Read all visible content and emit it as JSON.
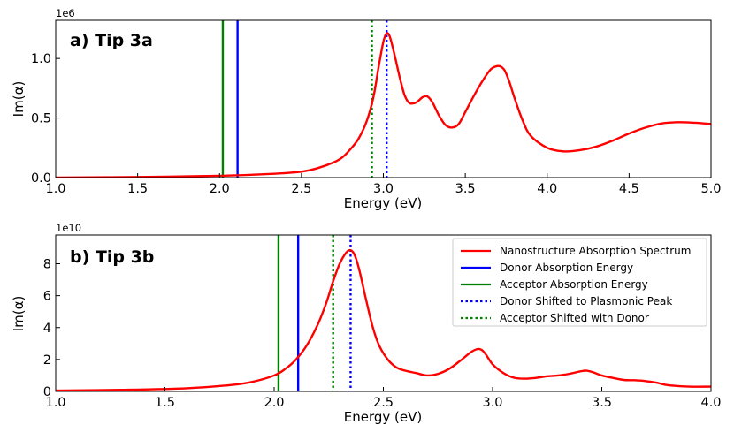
{
  "colors": {
    "spectrum": "#ff0000",
    "donor": "#0000ff",
    "acceptor": "#008000",
    "donor_shifted": "#0000ff",
    "acceptor_shifted": "#008000"
  },
  "chart_data": [
    {
      "type": "line",
      "panel_label": "a) Tip 3a",
      "xlabel": "Energy (eV)",
      "ylabel": "Im(α)",
      "offset_text": "1e6",
      "xlim": [
        1.0,
        5.0
      ],
      "ylim": [
        0,
        1.32
      ],
      "xticks": [
        1.0,
        1.5,
        2.0,
        2.5,
        3.0,
        3.5,
        4.0,
        4.5,
        5.0
      ],
      "xtick_labels": [
        "1.0",
        "1.5",
        "2.0",
        "2.5",
        "3.0",
        "3.5",
        "4.0",
        "4.5",
        "5.0"
      ],
      "yticks": [
        0.0,
        0.5,
        1.0
      ],
      "ytick_labels": [
        "0.0",
        "0.5",
        "1.0"
      ],
      "grid": false,
      "series": [
        {
          "name": "Nanostructure Absorption Spectrum",
          "x": [
            1.0,
            1.5,
            2.0,
            2.3,
            2.5,
            2.6,
            2.7,
            2.75,
            2.8,
            2.85,
            2.9,
            2.94,
            2.97,
            3.0,
            3.02,
            3.04,
            3.07,
            3.1,
            3.13,
            3.16,
            3.2,
            3.24,
            3.27,
            3.3,
            3.34,
            3.38,
            3.42,
            3.46,
            3.5,
            3.55,
            3.6,
            3.65,
            3.68,
            3.71,
            3.74,
            3.77,
            3.8,
            3.85,
            3.9,
            4.0,
            4.1,
            4.2,
            4.3,
            4.4,
            4.5,
            4.6,
            4.7,
            4.8,
            4.9,
            5.0
          ],
          "y": [
            0.0,
            0.005,
            0.015,
            0.03,
            0.05,
            0.08,
            0.13,
            0.17,
            0.24,
            0.33,
            0.48,
            0.68,
            0.92,
            1.14,
            1.21,
            1.18,
            1.02,
            0.84,
            0.69,
            0.625,
            0.63,
            0.675,
            0.68,
            0.63,
            0.52,
            0.44,
            0.42,
            0.45,
            0.55,
            0.68,
            0.8,
            0.9,
            0.93,
            0.935,
            0.9,
            0.8,
            0.67,
            0.48,
            0.35,
            0.25,
            0.22,
            0.23,
            0.26,
            0.31,
            0.37,
            0.42,
            0.455,
            0.465,
            0.46,
            0.45
          ]
        }
      ],
      "vlines": [
        {
          "name": "Acceptor Absorption Energy",
          "x": 2.02,
          "style": "solid",
          "color_key": "acceptor"
        },
        {
          "name": "Donor Absorption Energy",
          "x": 2.11,
          "style": "solid",
          "color_key": "donor"
        },
        {
          "name": "Acceptor Shifted with Donor",
          "x": 2.93,
          "style": "dotted",
          "color_key": "acceptor_shifted"
        },
        {
          "name": "Donor Shifted to Plasmonic Peak",
          "x": 3.02,
          "style": "dotted",
          "color_key": "donor_shifted"
        }
      ]
    },
    {
      "type": "line",
      "panel_label": "b) Tip 3b",
      "xlabel": "Energy (eV)",
      "ylabel": "Im(α)",
      "offset_text": "1e10",
      "xlim": [
        1.0,
        4.0
      ],
      "ylim": [
        0,
        9.8
      ],
      "xticks": [
        1.0,
        1.5,
        2.0,
        2.5,
        3.0,
        3.5,
        4.0
      ],
      "xtick_labels": [
        "1.0",
        "1.5",
        "2.0",
        "2.5",
        "3.0",
        "3.5",
        "4.0"
      ],
      "yticks": [
        0,
        2,
        4,
        6,
        8
      ],
      "ytick_labels": [
        "0",
        "2",
        "4",
        "6",
        "8"
      ],
      "grid": false,
      "series": [
        {
          "name": "Nanostructure Absorption Spectrum",
          "x": [
            1.0,
            1.3,
            1.6,
            1.8,
            1.9,
            2.0,
            2.05,
            2.1,
            2.15,
            2.2,
            2.24,
            2.27,
            2.3,
            2.33,
            2.35,
            2.37,
            2.39,
            2.42,
            2.45,
            2.48,
            2.52,
            2.56,
            2.6,
            2.65,
            2.7,
            2.75,
            2.8,
            2.85,
            2.9,
            2.93,
            2.95,
            2.97,
            3.0,
            3.05,
            3.1,
            3.15,
            3.2,
            3.25,
            3.3,
            3.35,
            3.4,
            3.43,
            3.46,
            3.5,
            3.55,
            3.6,
            3.65,
            3.7,
            3.75,
            3.8,
            3.9,
            4.0
          ],
          "y": [
            0.05,
            0.1,
            0.2,
            0.4,
            0.6,
            1.0,
            1.4,
            2.0,
            2.9,
            4.2,
            5.6,
            6.9,
            8.0,
            8.7,
            8.85,
            8.5,
            7.6,
            5.8,
            4.1,
            2.9,
            2.0,
            1.5,
            1.3,
            1.15,
            1.0,
            1.1,
            1.4,
            1.9,
            2.45,
            2.65,
            2.6,
            2.3,
            1.7,
            1.15,
            0.85,
            0.8,
            0.85,
            0.95,
            1.0,
            1.1,
            1.25,
            1.3,
            1.2,
            1.0,
            0.85,
            0.72,
            0.7,
            0.65,
            0.55,
            0.4,
            0.3,
            0.3
          ]
        }
      ],
      "vlines": [
        {
          "name": "Acceptor Absorption Energy",
          "x": 2.02,
          "style": "solid",
          "color_key": "acceptor"
        },
        {
          "name": "Donor Absorption Energy",
          "x": 2.11,
          "style": "solid",
          "color_key": "donor"
        },
        {
          "name": "Acceptor Shifted with Donor",
          "x": 2.27,
          "style": "dotted",
          "color_key": "acceptor_shifted"
        },
        {
          "name": "Donor Shifted to Plasmonic Peak",
          "x": 2.35,
          "style": "dotted",
          "color_key": "donor_shifted"
        }
      ],
      "legend": {
        "location": "top-right",
        "entries": [
          {
            "label": "Nanostructure Absorption Spectrum",
            "style": "solid",
            "color_key": "spectrum"
          },
          {
            "label": "Donor Absorption Energy",
            "style": "solid",
            "color_key": "donor"
          },
          {
            "label": "Acceptor Absorption Energy",
            "style": "solid",
            "color_key": "acceptor"
          },
          {
            "label": "Donor Shifted to Plasmonic Peak",
            "style": "dotted",
            "color_key": "donor_shifted"
          },
          {
            "label": "Acceptor Shifted with Donor",
            "style": "dotted",
            "color_key": "acceptor_shifted"
          }
        ]
      }
    }
  ]
}
